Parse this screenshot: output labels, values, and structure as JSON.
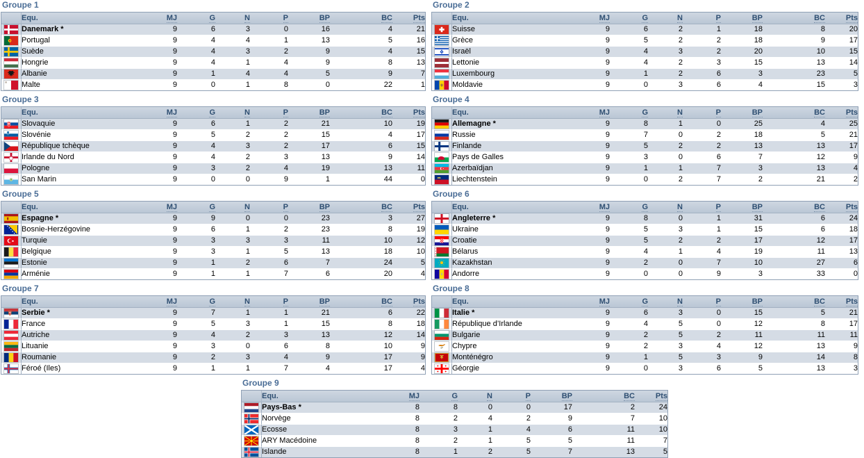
{
  "columns": {
    "team": "Equ.",
    "stats": [
      "MJ",
      "G",
      "N",
      "P",
      "BP",
      "BC",
      "Pts"
    ]
  },
  "colors": {
    "title": "#4A6D96",
    "header_text": "#2F4F72",
    "header_bg_top": "#CED7E1",
    "header_bg_bottom": "#BAC7D5",
    "row_alt": "#D5DCE5",
    "row": "#FFFFFF",
    "table_border": "#8FA0B5",
    "flag_cell_border": "#9FAEC0"
  },
  "groups": [
    {
      "title": "Groupe 1",
      "teams": [
        {
          "name": "Danemark *",
          "winner": true,
          "flag": "denmark",
          "stats": [
            9,
            6,
            3,
            0,
            16,
            4,
            21
          ]
        },
        {
          "name": "Portugal",
          "winner": false,
          "flag": "portugal",
          "stats": [
            9,
            4,
            4,
            1,
            13,
            5,
            16
          ]
        },
        {
          "name": "Suède",
          "winner": false,
          "flag": "sweden",
          "stats": [
            9,
            4,
            3,
            2,
            9,
            4,
            15
          ]
        },
        {
          "name": "Hongrie",
          "winner": false,
          "flag": "hungary",
          "stats": [
            9,
            4,
            1,
            4,
            9,
            8,
            13
          ]
        },
        {
          "name": "Albanie",
          "winner": false,
          "flag": "albania",
          "stats": [
            9,
            1,
            4,
            4,
            5,
            9,
            7
          ]
        },
        {
          "name": "Malte",
          "winner": false,
          "flag": "malta",
          "stats": [
            9,
            0,
            1,
            8,
            0,
            22,
            1
          ]
        }
      ]
    },
    {
      "title": "Groupe 2",
      "teams": [
        {
          "name": "Suisse",
          "winner": false,
          "flag": "switzerland",
          "stats": [
            9,
            6,
            2,
            1,
            18,
            8,
            20
          ]
        },
        {
          "name": "Grèce",
          "winner": false,
          "flag": "greece",
          "stats": [
            9,
            5,
            2,
            2,
            18,
            9,
            17
          ]
        },
        {
          "name": "Israël",
          "winner": false,
          "flag": "israel",
          "stats": [
            9,
            4,
            3,
            2,
            20,
            10,
            15
          ]
        },
        {
          "name": "Lettonie",
          "winner": false,
          "flag": "latvia",
          "stats": [
            9,
            4,
            2,
            3,
            15,
            13,
            14
          ]
        },
        {
          "name": "Luxembourg",
          "winner": false,
          "flag": "luxembourg",
          "stats": [
            9,
            1,
            2,
            6,
            3,
            23,
            5
          ]
        },
        {
          "name": "Moldavie",
          "winner": false,
          "flag": "moldova",
          "stats": [
            9,
            0,
            3,
            6,
            4,
            15,
            3
          ]
        }
      ]
    },
    {
      "title": "Groupe 3",
      "teams": [
        {
          "name": "Slovaquie",
          "winner": false,
          "flag": "slovakia",
          "stats": [
            9,
            6,
            1,
            2,
            21,
            10,
            19
          ]
        },
        {
          "name": "Slovénie",
          "winner": false,
          "flag": "slovenia",
          "stats": [
            9,
            5,
            2,
            2,
            15,
            4,
            17
          ]
        },
        {
          "name": "République tchèque",
          "winner": false,
          "flag": "czech",
          "stats": [
            9,
            4,
            3,
            2,
            17,
            6,
            15
          ]
        },
        {
          "name": "Irlande du Nord",
          "winner": false,
          "flag": "northern-ireland",
          "stats": [
            9,
            4,
            2,
            3,
            13,
            9,
            14
          ]
        },
        {
          "name": "Pologne",
          "winner": false,
          "flag": "poland",
          "stats": [
            9,
            3,
            2,
            4,
            19,
            13,
            11
          ]
        },
        {
          "name": "San Marin",
          "winner": false,
          "flag": "san-marino",
          "stats": [
            9,
            0,
            0,
            9,
            1,
            44,
            0
          ]
        }
      ]
    },
    {
      "title": "Groupe 4",
      "teams": [
        {
          "name": "Allemagne *",
          "winner": true,
          "flag": "germany",
          "stats": [
            9,
            8,
            1,
            0,
            25,
            4,
            25
          ]
        },
        {
          "name": "Russie",
          "winner": false,
          "flag": "russia",
          "stats": [
            9,
            7,
            0,
            2,
            18,
            5,
            21
          ]
        },
        {
          "name": "Finlande",
          "winner": false,
          "flag": "finland",
          "stats": [
            9,
            5,
            2,
            2,
            13,
            13,
            17
          ]
        },
        {
          "name": "Pays de Galles",
          "winner": false,
          "flag": "wales",
          "stats": [
            9,
            3,
            0,
            6,
            7,
            12,
            9
          ]
        },
        {
          "name": "Azerbaïdjan",
          "winner": false,
          "flag": "azerbaijan",
          "stats": [
            9,
            1,
            1,
            7,
            3,
            13,
            4
          ]
        },
        {
          "name": "Liechtenstein",
          "winner": false,
          "flag": "liechtenstein",
          "stats": [
            9,
            0,
            2,
            7,
            2,
            21,
            2
          ]
        }
      ]
    },
    {
      "title": "Groupe 5",
      "teams": [
        {
          "name": "Espagne *",
          "winner": true,
          "flag": "spain",
          "stats": [
            9,
            9,
            0,
            0,
            23,
            3,
            27
          ]
        },
        {
          "name": "Bosnie-Herzégovine",
          "winner": false,
          "flag": "bosnia",
          "stats": [
            9,
            6,
            1,
            2,
            23,
            8,
            19
          ]
        },
        {
          "name": "Turquie",
          "winner": false,
          "flag": "turkey",
          "stats": [
            9,
            3,
            3,
            3,
            11,
            10,
            12
          ]
        },
        {
          "name": "Belgique",
          "winner": false,
          "flag": "belgium",
          "stats": [
            9,
            3,
            1,
            5,
            13,
            18,
            10
          ]
        },
        {
          "name": "Estonie",
          "winner": false,
          "flag": "estonia",
          "stats": [
            9,
            1,
            2,
            6,
            7,
            24,
            5
          ]
        },
        {
          "name": "Arménie",
          "winner": false,
          "flag": "armenia",
          "stats": [
            9,
            1,
            1,
            7,
            6,
            20,
            4
          ]
        }
      ]
    },
    {
      "title": "Groupe 6",
      "teams": [
        {
          "name": "Angleterre *",
          "winner": true,
          "flag": "england",
          "stats": [
            9,
            8,
            0,
            1,
            31,
            6,
            24
          ]
        },
        {
          "name": "Ukraine",
          "winner": false,
          "flag": "ukraine",
          "stats": [
            9,
            5,
            3,
            1,
            15,
            6,
            18
          ]
        },
        {
          "name": "Croatie",
          "winner": false,
          "flag": "croatia",
          "stats": [
            9,
            5,
            2,
            2,
            17,
            12,
            17
          ]
        },
        {
          "name": "Bélarus",
          "winner": false,
          "flag": "belarus",
          "stats": [
            9,
            4,
            1,
            4,
            19,
            11,
            13
          ]
        },
        {
          "name": "Kazakhstan",
          "winner": false,
          "flag": "kazakhstan",
          "stats": [
            9,
            2,
            0,
            7,
            10,
            27,
            6
          ]
        },
        {
          "name": "Andorre",
          "winner": false,
          "flag": "andorra",
          "stats": [
            9,
            0,
            0,
            9,
            3,
            33,
            0
          ]
        }
      ]
    },
    {
      "title": "Groupe 7",
      "teams": [
        {
          "name": "Serbie *",
          "winner": true,
          "flag": "serbia",
          "stats": [
            9,
            7,
            1,
            1,
            21,
            6,
            22
          ]
        },
        {
          "name": "France",
          "winner": false,
          "flag": "france",
          "stats": [
            9,
            5,
            3,
            1,
            15,
            8,
            18
          ]
        },
        {
          "name": "Autriche",
          "winner": false,
          "flag": "austria",
          "stats": [
            9,
            4,
            2,
            3,
            13,
            12,
            14
          ]
        },
        {
          "name": "Lituanie",
          "winner": false,
          "flag": "lithuania",
          "stats": [
            9,
            3,
            0,
            6,
            8,
            10,
            9
          ]
        },
        {
          "name": "Roumanie",
          "winner": false,
          "flag": "romania",
          "stats": [
            9,
            2,
            3,
            4,
            9,
            17,
            9
          ]
        },
        {
          "name": "Féroé (Iles)",
          "winner": false,
          "flag": "faroe",
          "stats": [
            9,
            1,
            1,
            7,
            4,
            17,
            4
          ]
        }
      ]
    },
    {
      "title": "Groupe 8",
      "teams": [
        {
          "name": "Italie *",
          "winner": true,
          "flag": "italy",
          "stats": [
            9,
            6,
            3,
            0,
            15,
            5,
            21
          ]
        },
        {
          "name": "République d’Irlande",
          "winner": false,
          "flag": "ireland",
          "stats": [
            9,
            4,
            5,
            0,
            12,
            8,
            17
          ]
        },
        {
          "name": "Bulgarie",
          "winner": false,
          "flag": "bulgaria",
          "stats": [
            9,
            2,
            5,
            2,
            11,
            11,
            11
          ]
        },
        {
          "name": "Chypre",
          "winner": false,
          "flag": "cyprus",
          "stats": [
            9,
            2,
            3,
            4,
            12,
            13,
            9
          ]
        },
        {
          "name": "Monténégro",
          "winner": false,
          "flag": "montenegro",
          "stats": [
            9,
            1,
            5,
            3,
            9,
            14,
            8
          ]
        },
        {
          "name": "Géorgie",
          "winner": false,
          "flag": "georgia",
          "stats": [
            9,
            0,
            3,
            6,
            5,
            13,
            3
          ]
        }
      ]
    },
    {
      "title": "Groupe 9",
      "teams": [
        {
          "name": "Pays-Bas *",
          "winner": true,
          "flag": "netherlands",
          "stats": [
            8,
            8,
            0,
            0,
            17,
            2,
            24
          ]
        },
        {
          "name": "Norvège",
          "winner": false,
          "flag": "norway",
          "stats": [
            8,
            2,
            4,
            2,
            9,
            7,
            10
          ]
        },
        {
          "name": "Ecosse",
          "winner": false,
          "flag": "scotland",
          "stats": [
            8,
            3,
            1,
            4,
            6,
            11,
            10
          ]
        },
        {
          "name": "ARY Macédoine",
          "winner": false,
          "flag": "macedonia",
          "stats": [
            8,
            2,
            1,
            5,
            5,
            11,
            7
          ]
        },
        {
          "name": "Islande",
          "winner": false,
          "flag": "iceland",
          "stats": [
            8,
            1,
            2,
            5,
            7,
            13,
            5
          ]
        }
      ]
    }
  ]
}
